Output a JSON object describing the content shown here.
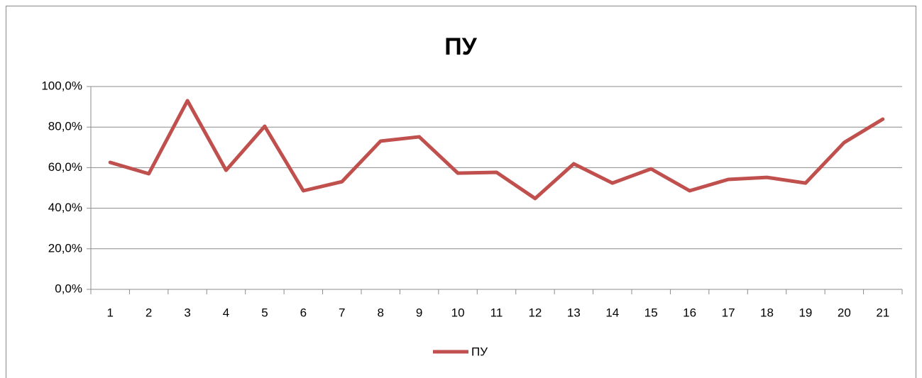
{
  "chart_data": {
    "type": "line",
    "title": "ПУ",
    "categories": [
      "1",
      "2",
      "3",
      "4",
      "5",
      "6",
      "7",
      "8",
      "9",
      "10",
      "11",
      "12",
      "13",
      "14",
      "15",
      "16",
      "17",
      "18",
      "19",
      "20",
      "21"
    ],
    "series": [
      {
        "name": "ПУ",
        "color": "#c0504d",
        "values": [
          62.6,
          57.0,
          93.0,
          58.7,
          80.4,
          48.6,
          53.1,
          73.1,
          75.2,
          57.3,
          57.7,
          44.8,
          61.9,
          52.4,
          59.4,
          48.6,
          54.2,
          55.2,
          52.4,
          72.4,
          83.9
        ]
      }
    ],
    "ylim": [
      0,
      100
    ],
    "yticks": [
      {
        "value": 0,
        "label": "0,0%"
      },
      {
        "value": 20,
        "label": "20,0%"
      },
      {
        "value": 40,
        "label": "40,0%"
      },
      {
        "value": 60,
        "label": "60,0%"
      },
      {
        "value": 80,
        "label": "80,0%"
      },
      {
        "value": 100,
        "label": "100,0%"
      }
    ],
    "grid": true,
    "legend": "bottom"
  }
}
